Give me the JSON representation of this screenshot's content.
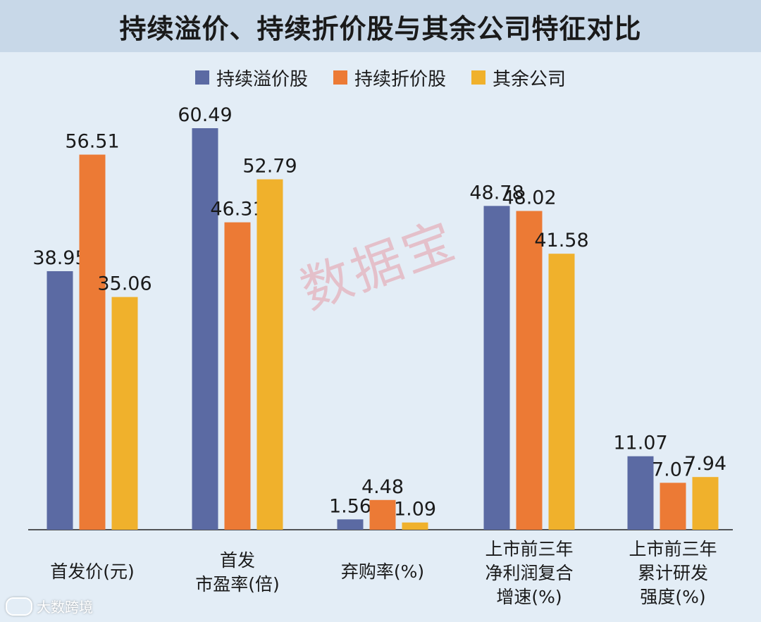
{
  "page": {
    "title": "持续溢价、持续折价股与其余公司特征对比",
    "watermark": "数据宝",
    "brand": "大数跨境"
  },
  "colors": {
    "background": "#e3edf6",
    "title_bar": "#c8d8e8",
    "series": [
      "#5b6aa3",
      "#ec7a35",
      "#f0b12c"
    ]
  },
  "chart_data": {
    "type": "bar",
    "title": "持续溢价、持续折价股与其余公司特征对比",
    "categories": [
      [
        "首发价(元)"
      ],
      [
        "首发",
        "市盈率(倍)"
      ],
      [
        "弃购率(%)"
      ],
      [
        "上市前三年",
        "净利润复合",
        "增速(%)"
      ],
      [
        "上市前三年",
        "累计研发",
        "强度(%)"
      ]
    ],
    "series": [
      {
        "name": "持续溢价股",
        "values": [
          38.95,
          60.49,
          1.56,
          48.78,
          11.07
        ]
      },
      {
        "name": "持续折价股",
        "values": [
          56.51,
          46.31,
          4.48,
          48.02,
          7.07
        ]
      },
      {
        "name": "其余公司",
        "values": [
          35.06,
          52.79,
          1.09,
          41.58,
          7.94
        ]
      }
    ],
    "value_labels": [
      [
        "38.95",
        "60.49",
        "1.56",
        "48.78",
        "11.07"
      ],
      [
        "56.51",
        "46.31",
        "4.48",
        "48.02",
        "7.07"
      ],
      [
        "35.06",
        "52.79",
        "1.09",
        "41.58",
        "7.94"
      ]
    ],
    "ylim": [
      0,
      60.49
    ],
    "legend": "top-center",
    "grid": false
  }
}
